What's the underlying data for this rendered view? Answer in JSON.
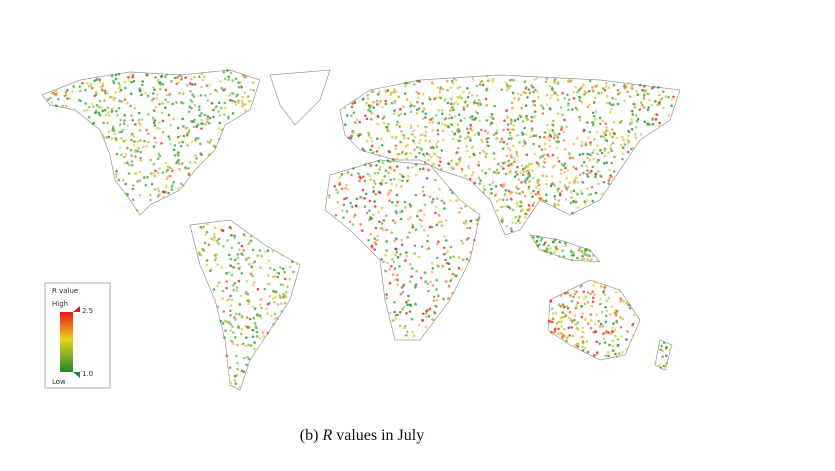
{
  "legend": {
    "title": "R value",
    "high_label": "High",
    "low_label": "Low",
    "max": 2.5,
    "min": {
      "value": 1,
      "label": "1.0"
    }
  },
  "caption": {
    "prefix": "(b) ",
    "variable": "R",
    "suffix": " values in July"
  }
}
